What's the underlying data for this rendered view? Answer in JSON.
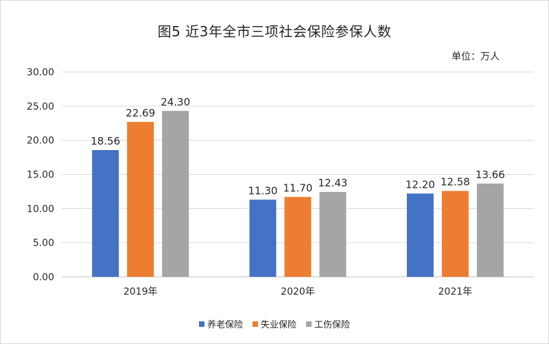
{
  "title": "图5  近3年全市三项社会保险参保人数",
  "unit_label": "单位：万人",
  "colors": {
    "series": [
      "#4472C4",
      "#ED7D31",
      "#A5A5A5"
    ],
    "grid": "#d9d9d9",
    "text": "#262626"
  },
  "chart_data": {
    "type": "bar",
    "title": "图5  近3年全市三项社会保险参保人数",
    "xlabel": "",
    "ylabel": "",
    "ylim": [
      0,
      30
    ],
    "yticks": [
      "0.00",
      "5.00",
      "10.00",
      "15.00",
      "20.00",
      "25.00",
      "30.00"
    ],
    "categories": [
      "2019年",
      "2020年",
      "2021年"
    ],
    "series": [
      {
        "name": "养老保险",
        "values": [
          18.56,
          11.3,
          12.2
        ],
        "labels": [
          "18.56",
          "11.30",
          "12.20"
        ]
      },
      {
        "name": "失业保险",
        "values": [
          22.69,
          11.7,
          12.58
        ],
        "labels": [
          "22.69",
          "11.70",
          "12.58"
        ]
      },
      {
        "name": "工伤保险",
        "values": [
          24.3,
          12.43,
          13.66
        ],
        "labels": [
          "24.30",
          "12.43",
          "13.66"
        ]
      }
    ],
    "grid": true,
    "legend_position": "bottom"
  }
}
